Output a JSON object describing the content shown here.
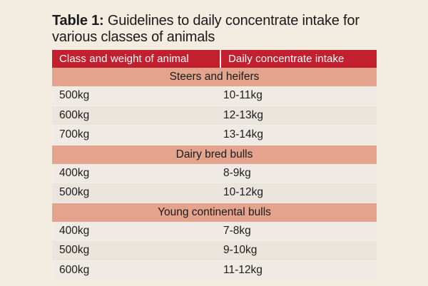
{
  "title": {
    "label": "Table 1:",
    "text": " Guidelines to daily concentrate intake for various classes of animals"
  },
  "table": {
    "headers": [
      "Class and weight of animal",
      "Daily concentrate intake"
    ],
    "groups": [
      {
        "name": "Steers and heifers",
        "rows": [
          {
            "weight": "500kg",
            "intake": "10-11kg"
          },
          {
            "weight": "600kg",
            "intake": "12-13kg"
          },
          {
            "weight": "700kg",
            "intake": "13-14kg"
          }
        ]
      },
      {
        "name": "Dairy bred bulls",
        "rows": [
          {
            "weight": "400kg",
            "intake": "8-9kg"
          },
          {
            "weight": "500kg",
            "intake": "10-12kg"
          }
        ]
      },
      {
        "name": "Young continental bulls",
        "rows": [
          {
            "weight": "400kg",
            "intake": "7-8kg"
          },
          {
            "weight": "500kg",
            "intake": "9-10kg"
          },
          {
            "weight": "600kg",
            "intake": "11-12kg"
          }
        ]
      }
    ]
  },
  "colors": {
    "header_bg": "#c2202f",
    "group_bg": "#e3a38c",
    "page_bg": "#f3ece1"
  }
}
